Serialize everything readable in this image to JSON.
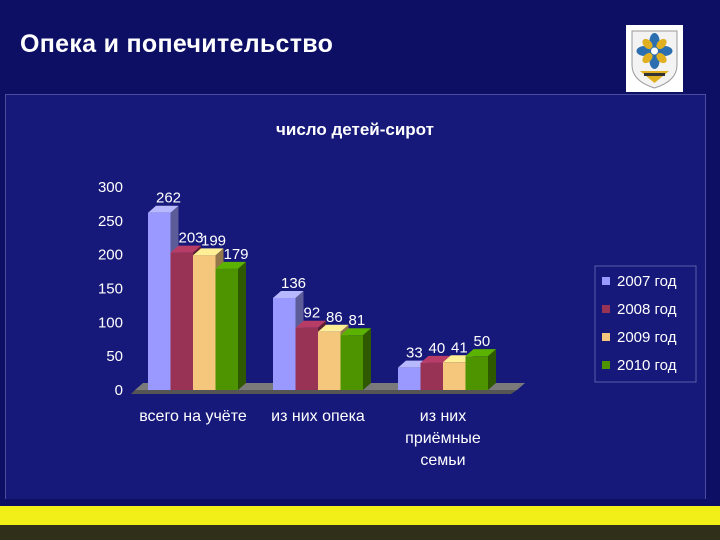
{
  "slide": {
    "title": "Опека и попечительство"
  },
  "emblem": {
    "icon": "coat-of-arms-icon"
  },
  "colors": {
    "background": "#0c0f64",
    "chart_bg": "#16197a",
    "accent_yellow": "#f2ee18",
    "series": [
      "#9999ff",
      "#993355",
      "#f4c77c",
      "#4d9400"
    ]
  },
  "chart_data": {
    "type": "bar",
    "title": "число детей-сирот",
    "categories": [
      "всего на учёте",
      "из них опека",
      "из них приёмные семьи"
    ],
    "category_label_lines": [
      [
        "всего на учёте"
      ],
      [
        "из них опека"
      ],
      [
        "из них",
        "приёмные",
        "семьи"
      ]
    ],
    "series": [
      {
        "name": "2007 год",
        "values": [
          262,
          136,
          33
        ]
      },
      {
        "name": "2008 год",
        "values": [
          203,
          92,
          40
        ]
      },
      {
        "name": "2009 год",
        "values": [
          199,
          86,
          41
        ]
      },
      {
        "name": "2010 год",
        "values": [
          179,
          81,
          50
        ]
      }
    ],
    "y_ticks": [
      0,
      50,
      100,
      150,
      200,
      250,
      300
    ],
    "ylim": [
      0,
      300
    ],
    "xlabel": "",
    "ylabel": "",
    "legend_position": "right",
    "grid": false,
    "three_d": true
  }
}
